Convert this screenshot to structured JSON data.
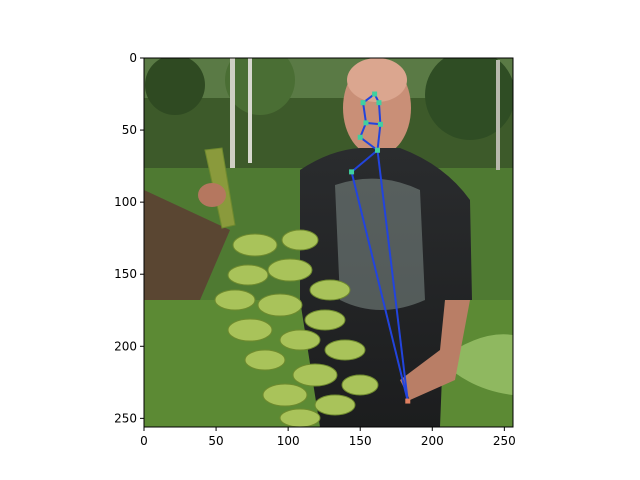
{
  "chart_data": {
    "type": "scatter",
    "title": "",
    "xlabel": "",
    "ylabel": "",
    "xlim": [
      0,
      256
    ],
    "ylim": [
      256,
      0
    ],
    "y_inverted": true,
    "grid": false,
    "x_ticks": [
      0,
      50,
      100,
      150,
      200,
      250
    ],
    "y_ticks": [
      0,
      50,
      100,
      150,
      200,
      250
    ],
    "background": "photo: bald man in dark graphic t-shirt holding a large bunch of green bananas outdoors",
    "keypoints": [
      {
        "x": 152,
        "y": 31,
        "color": "#3fd0a0"
      },
      {
        "x": 160,
        "y": 25,
        "color": "#3fd0a0"
      },
      {
        "x": 163,
        "y": 31,
        "color": "#3fd0a0"
      },
      {
        "x": 154,
        "y": 45,
        "color": "#3fd0a0"
      },
      {
        "x": 164,
        "y": 46,
        "color": "#3fd0a0"
      },
      {
        "x": 150,
        "y": 55,
        "color": "#3fd0a0"
      },
      {
        "x": 162,
        "y": 64,
        "color": "#3fd0a0"
      },
      {
        "x": 144,
        "y": 79,
        "color": "#3fd0a0"
      },
      {
        "x": 183,
        "y": 238,
        "color": "#e08060"
      }
    ],
    "edges": [
      [
        1,
        0
      ],
      [
        1,
        2
      ],
      [
        2,
        4
      ],
      [
        0,
        3
      ],
      [
        3,
        4
      ],
      [
        3,
        5
      ],
      [
        5,
        6
      ],
      [
        4,
        6
      ],
      [
        6,
        7
      ],
      [
        7,
        8
      ],
      [
        6,
        8
      ]
    ],
    "line_color": "#2244dd"
  }
}
